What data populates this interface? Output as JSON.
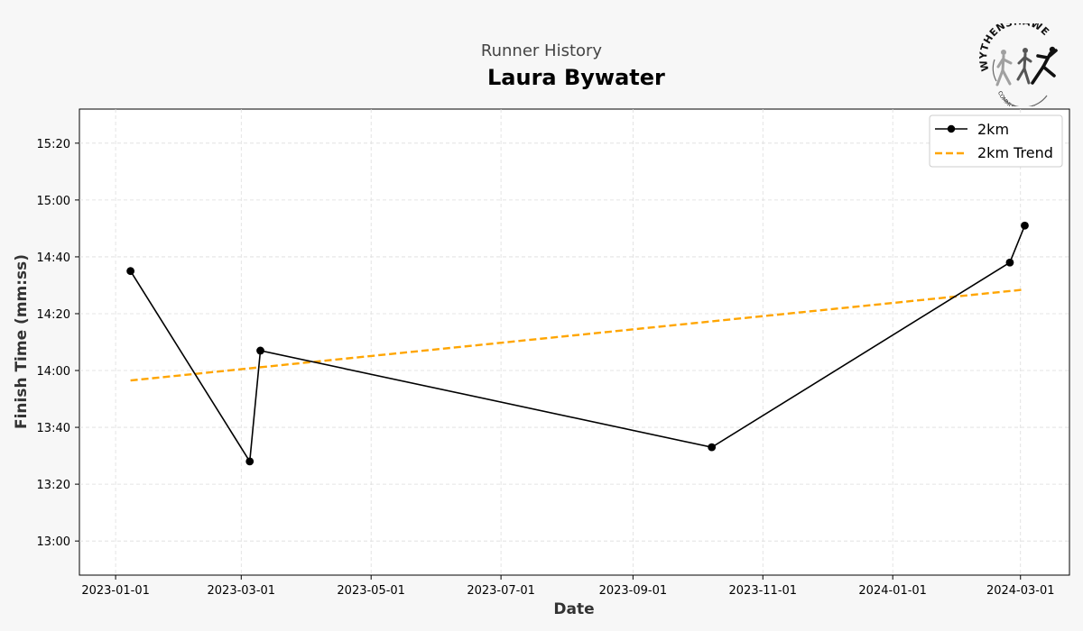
{
  "header": {
    "subtitle": "Runner History",
    "title": "Laura Bywater"
  },
  "logo": {
    "top_text": "WYTHENSHAWE",
    "bottom_text": "COMMUNITY RUN"
  },
  "chart_data": {
    "type": "line",
    "title": "Laura Bywater",
    "subtitle": "Runner History",
    "xlabel": "Date",
    "ylabel": "Finish Time (mm:ss)",
    "x_ticks": [
      "2023-01-01",
      "2023-03-01",
      "2023-05-01",
      "2023-07-01",
      "2023-09-01",
      "2023-11-01",
      "2024-01-01",
      "2024-03-01"
    ],
    "y_ticks": [
      "13:00",
      "13:20",
      "13:40",
      "14:00",
      "14:20",
      "14:40",
      "15:00",
      "15:20"
    ],
    "xlim": [
      "2022-12-15",
      "2024-03-24"
    ],
    "ylim": [
      "12:48",
      "15:32"
    ],
    "grid": true,
    "legend_position": "top-right",
    "series": [
      {
        "name": "2km",
        "style": "solid line with circle markers",
        "color": "#000000",
        "points": [
          {
            "x": "2023-01-08",
            "y": "14:35"
          },
          {
            "x": "2023-03-05",
            "y": "13:28"
          },
          {
            "x": "2023-03-10",
            "y": "14:07"
          },
          {
            "x": "2023-10-08",
            "y": "13:33"
          },
          {
            "x": "2024-02-25",
            "y": "14:38"
          },
          {
            "x": "2024-03-03",
            "y": "14:51"
          }
        ]
      },
      {
        "name": "2km Trend",
        "style": "dashed line",
        "color": "#FFA500",
        "points": [
          {
            "x": "2023-01-08",
            "y": "13:56.5"
          },
          {
            "x": "2024-03-03",
            "y": "14:28.5"
          }
        ]
      }
    ]
  }
}
